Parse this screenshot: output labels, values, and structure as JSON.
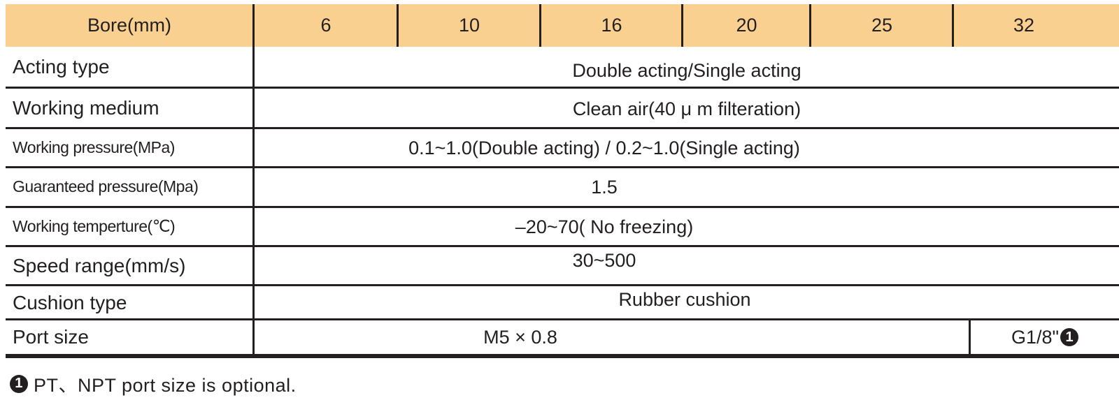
{
  "header": {
    "label": "Bore(mm)",
    "bores": [
      "6",
      "10",
      "16",
      "20",
      "25",
      "32"
    ]
  },
  "rows": [
    {
      "label": "Acting type",
      "value": "Double acting/Single acting"
    },
    {
      "label": "Working medium",
      "value": "Clean air(40 μ m filteration)"
    },
    {
      "label": "Working pressure(MPa)",
      "value": "0.1~1.0(Double acting) / 0.2~1.0(Single acting)"
    },
    {
      "label": "Guaranteed pressure(Mpa)",
      "value": "1.5"
    },
    {
      "label": "Working temperture(℃)",
      "value": "–20~70( No freezing)"
    },
    {
      "label": "Speed range(mm/s)",
      "value": "30~500"
    },
    {
      "label": "Cushion type",
      "value": "Rubber cushion"
    }
  ],
  "port": {
    "label": "Port size",
    "value_main": "M5 × 0.8",
    "value_32": "G1/8\"",
    "marker": "1"
  },
  "footnote": {
    "marker": "1",
    "text": "PT、NPT port size is optional."
  },
  "colors": {
    "header_bg": "#f9d090",
    "line": "#231f20"
  }
}
